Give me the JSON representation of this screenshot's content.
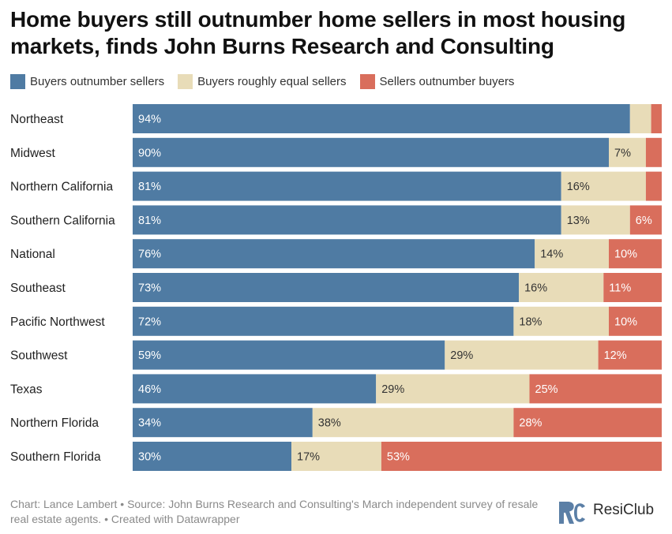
{
  "title": "Home buyers still outnumber home sellers in most housing markets, finds John Burns Research and Consulting",
  "colors": {
    "buyers": "#4f7ba3",
    "equal": "#e8dcb8",
    "sellers": "#d96e5c"
  },
  "legend": [
    {
      "label": "Buyers outnumber sellers",
      "color": "#4f7ba3"
    },
    {
      "label": "Buyers roughly equal sellers",
      "color": "#e8dcb8"
    },
    {
      "label": "Sellers outnumber buyers",
      "color": "#d96e5c"
    }
  ],
  "chart_data": {
    "type": "bar",
    "stacked": true,
    "orientation": "horizontal",
    "xlim": [
      0,
      100
    ],
    "categories": [
      "Northeast",
      "Midwest",
      "Northern California",
      "Southern California",
      "National",
      "Southeast",
      "Pacific Northwest",
      "Southwest",
      "Texas",
      "Northern Florida",
      "Southern Florida"
    ],
    "series": [
      {
        "name": "Buyers outnumber sellers",
        "values": [
          94,
          90,
          81,
          81,
          76,
          73,
          72,
          59,
          46,
          34,
          30
        ]
      },
      {
        "name": "Buyers roughly equal sellers",
        "values": [
          4,
          7,
          16,
          13,
          14,
          16,
          18,
          29,
          29,
          38,
          17
        ]
      },
      {
        "name": "Sellers outnumber buyers",
        "values": [
          2,
          3,
          3,
          6,
          10,
          11,
          10,
          12,
          25,
          28,
          53
        ]
      }
    ],
    "value_labels": [
      [
        "94%",
        "",
        ""
      ],
      [
        "90%",
        "7%",
        ""
      ],
      [
        "81%",
        "16%",
        ""
      ],
      [
        "81%",
        "13%",
        "6%"
      ],
      [
        "76%",
        "14%",
        "10%"
      ],
      [
        "73%",
        "16%",
        "11%"
      ],
      [
        "72%",
        "18%",
        "10%"
      ],
      [
        "59%",
        "29%",
        "12%"
      ],
      [
        "46%",
        "29%",
        "25%"
      ],
      [
        "34%",
        "38%",
        "28%"
      ],
      [
        "30%",
        "17%",
        "53%"
      ]
    ]
  },
  "footer": "Chart: Lance Lambert • Source: John Burns Research and Consulting's March independent survey of resale real estate agents. • Created with Datawrapper",
  "logo": {
    "text": "ResiClub",
    "mark_letter": "RC"
  }
}
